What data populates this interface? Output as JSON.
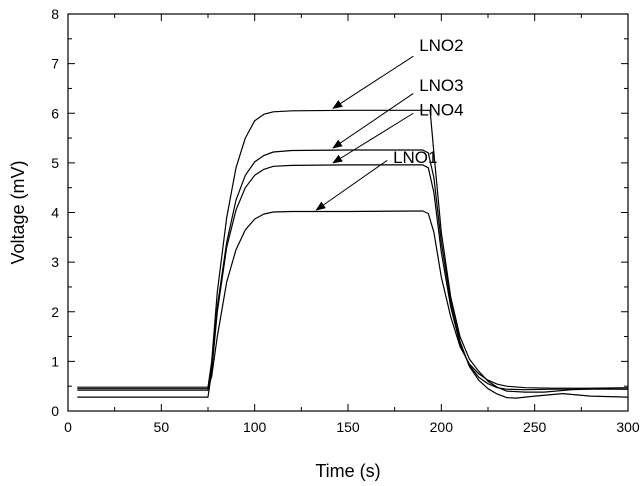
{
  "chart_data": {
    "type": "line",
    "title": "",
    "xlabel": "Time (s)",
    "ylabel": "Voltage (mV)",
    "xlim": [
      0,
      300
    ],
    "ylim": [
      0,
      8
    ],
    "xticks": [
      0,
      50,
      100,
      150,
      200,
      250,
      300
    ],
    "yticks": [
      0,
      1,
      2,
      3,
      4,
      5,
      6,
      7,
      8
    ],
    "grid": false,
    "line_color": "#000000",
    "series": [
      {
        "name": "LNO2",
        "points": [
          [
            5,
            0.48
          ],
          [
            75,
            0.48
          ],
          [
            77,
            1.0
          ],
          [
            80,
            2.4
          ],
          [
            85,
            3.9
          ],
          [
            90,
            4.9
          ],
          [
            95,
            5.5
          ],
          [
            100,
            5.85
          ],
          [
            105,
            5.98
          ],
          [
            110,
            6.03
          ],
          [
            120,
            6.05
          ],
          [
            150,
            6.06
          ],
          [
            194,
            6.06
          ],
          [
            196,
            5.2
          ],
          [
            200,
            3.6
          ],
          [
            205,
            2.3
          ],
          [
            210,
            1.5
          ],
          [
            215,
            1.05
          ],
          [
            220,
            0.8
          ],
          [
            225,
            0.6
          ],
          [
            230,
            0.48
          ],
          [
            235,
            0.4
          ],
          [
            245,
            0.38
          ],
          [
            255,
            0.38
          ],
          [
            270,
            0.43
          ],
          [
            285,
            0.45
          ],
          [
            300,
            0.44
          ]
        ]
      },
      {
        "name": "LNO3",
        "points": [
          [
            5,
            0.42
          ],
          [
            75,
            0.42
          ],
          [
            77,
            0.9
          ],
          [
            80,
            2.1
          ],
          [
            85,
            3.4
          ],
          [
            90,
            4.25
          ],
          [
            95,
            4.75
          ],
          [
            100,
            5.02
          ],
          [
            105,
            5.15
          ],
          [
            110,
            5.22
          ],
          [
            120,
            5.25
          ],
          [
            150,
            5.26
          ],
          [
            190,
            5.26
          ],
          [
            193,
            5.2
          ],
          [
            196,
            4.7
          ],
          [
            200,
            3.4
          ],
          [
            205,
            2.2
          ],
          [
            210,
            1.4
          ],
          [
            215,
            0.9
          ],
          [
            220,
            0.62
          ],
          [
            225,
            0.45
          ],
          [
            230,
            0.34
          ],
          [
            235,
            0.27
          ],
          [
            240,
            0.26
          ],
          [
            250,
            0.3
          ],
          [
            265,
            0.35
          ],
          [
            280,
            0.3
          ],
          [
            300,
            0.28
          ]
        ]
      },
      {
        "name": "LNO4",
        "points": [
          [
            5,
            0.28
          ],
          [
            75,
            0.28
          ],
          [
            77,
            0.8
          ],
          [
            80,
            2.0
          ],
          [
            85,
            3.3
          ],
          [
            90,
            4.05
          ],
          [
            95,
            4.5
          ],
          [
            100,
            4.75
          ],
          [
            105,
            4.87
          ],
          [
            110,
            4.93
          ],
          [
            120,
            4.95
          ],
          [
            150,
            4.96
          ],
          [
            190,
            4.96
          ],
          [
            193,
            4.9
          ],
          [
            196,
            4.4
          ],
          [
            200,
            3.2
          ],
          [
            205,
            2.1
          ],
          [
            210,
            1.35
          ],
          [
            215,
            0.92
          ],
          [
            220,
            0.68
          ],
          [
            225,
            0.55
          ],
          [
            230,
            0.47
          ],
          [
            235,
            0.44
          ],
          [
            245,
            0.43
          ],
          [
            260,
            0.44
          ],
          [
            280,
            0.44
          ],
          [
            300,
            0.44
          ]
        ]
      },
      {
        "name": "LNO1",
        "points": [
          [
            5,
            0.45
          ],
          [
            75,
            0.45
          ],
          [
            77,
            0.7
          ],
          [
            80,
            1.5
          ],
          [
            85,
            2.6
          ],
          [
            90,
            3.25
          ],
          [
            95,
            3.65
          ],
          [
            100,
            3.87
          ],
          [
            105,
            3.97
          ],
          [
            110,
            4.01
          ],
          [
            120,
            4.02
          ],
          [
            150,
            4.02
          ],
          [
            190,
            4.03
          ],
          [
            193,
            3.98
          ],
          [
            196,
            3.6
          ],
          [
            200,
            2.7
          ],
          [
            205,
            1.9
          ],
          [
            210,
            1.3
          ],
          [
            215,
            0.95
          ],
          [
            220,
            0.75
          ],
          [
            225,
            0.62
          ],
          [
            230,
            0.54
          ],
          [
            235,
            0.5
          ],
          [
            245,
            0.47
          ],
          [
            260,
            0.46
          ],
          [
            280,
            0.46
          ],
          [
            300,
            0.47
          ]
        ]
      }
    ],
    "annotations": [
      {
        "text": "LNO2",
        "label_at": [
          186,
          7.25
        ],
        "arrow_from": [
          185,
          7.15
        ],
        "arrow_to": [
          142,
          6.1
        ]
      },
      {
        "text": "LNO3",
        "label_at": [
          186,
          6.45
        ],
        "arrow_from": [
          185,
          6.4
        ],
        "arrow_to": [
          142,
          5.3
        ]
      },
      {
        "text": "LNO4",
        "label_at": [
          186,
          5.95
        ],
        "arrow_from": [
          185,
          6.0
        ],
        "arrow_to": [
          142,
          5.0
        ]
      },
      {
        "text": "LNO1",
        "label_at": [
          172,
          5.0
        ],
        "arrow_from": [
          171,
          5.05
        ],
        "arrow_to": [
          133,
          4.05
        ]
      }
    ]
  }
}
